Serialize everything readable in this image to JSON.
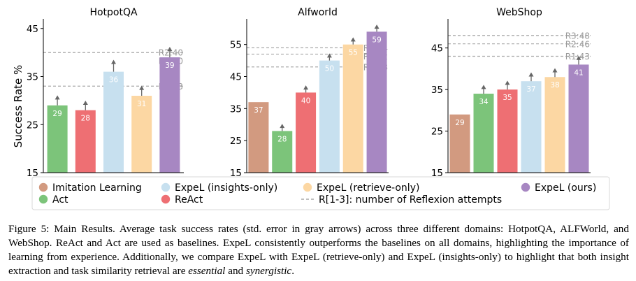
{
  "figure": {
    "ylabel": "Success Rate %",
    "colors": {
      "Imitation Learning": "#d29a80",
      "Act": "#7cc47a",
      "ReAct": "#ee6f73",
      "ExpeL (insights-only)": "#c7e0ef",
      "ExpeL (retrieve-only)": "#fcd7a3",
      "ExpeL (ours)": "#a787c2",
      "reflexion_line": "#aaaaaa",
      "error_arrow": "#666666"
    }
  },
  "chart_data": [
    {
      "type": "bar",
      "title": "HotpotQA",
      "ylabel": "Success Rate %",
      "ylim": [
        15,
        47
      ],
      "yticks": [
        15,
        25,
        35,
        45
      ],
      "categories": [
        "Act",
        "ReAct",
        "ExpeL (insights-only)",
        "ExpeL (retrieve-only)",
        "ExpeL (ours)"
      ],
      "values": [
        29,
        28,
        36,
        31,
        39
      ],
      "errors": [
        1.8,
        1.7,
        2.2,
        1.8,
        1.9
      ],
      "reflexion": [
        {
          "label": "R1:33",
          "value": 33
        },
        {
          "label": "R2:40",
          "value": 40
        },
        {
          "label": "R3:40",
          "value": 40
        }
      ]
    },
    {
      "type": "bar",
      "title": "Alfworld",
      "ylim": [
        15,
        63
      ],
      "yticks": [
        15,
        25,
        35,
        45,
        55
      ],
      "categories": [
        "Imitation Learning",
        "Act",
        "ReAct",
        "ExpeL (insights-only)",
        "ExpeL (retrieve-only)",
        "ExpeL (ours)"
      ],
      "values": [
        37,
        28,
        40,
        50,
        55,
        59
      ],
      "errors": [
        0,
        1.8,
        1.8,
        1.8,
        1.8,
        1.8
      ],
      "reflexion": [
        {
          "label": "R1:48",
          "value": 48
        },
        {
          "label": "R2:52",
          "value": 52
        },
        {
          "label": "R3:54",
          "value": 54
        }
      ]
    },
    {
      "type": "bar",
      "title": "WebShop",
      "ylim": [
        15,
        52
      ],
      "yticks": [
        15,
        25,
        35,
        45
      ],
      "categories": [
        "Imitation Learning",
        "Act",
        "ReAct",
        "ExpeL (insights-only)",
        "ExpeL (retrieve-only)",
        "ExpeL (ours)"
      ],
      "values": [
        29,
        34,
        35,
        37,
        38,
        41
      ],
      "errors": [
        0,
        1.8,
        1.8,
        1.8,
        1.8,
        1.8
      ],
      "reflexion": [
        {
          "label": "R1:43",
          "value": 43
        },
        {
          "label": "R2:46",
          "value": 46
        },
        {
          "label": "R3:48",
          "value": 48
        }
      ]
    }
  ],
  "legend": {
    "items": [
      "Imitation Learning",
      "ExpeL (insights-only)",
      "ExpeL (retrieve-only)",
      "ExpeL (ours)",
      "Act",
      "ReAct"
    ],
    "dashed_label": "R[1-3]: number of Reflexion attempts"
  },
  "caption": {
    "p1": "Figure 5: Main Results. Average task success rates (std. error in gray arrows) across three different domains: HotpotQA, ALFWorld, and WebShop. ReAct and Act are used as baselines. ExpeL consistently outperforms the baselines on all domains, highlighting the importance of learning from experience. Additionally, we compare ExpeL with ExpeL (retrieve-only) and ExpeL (insights-only) to highlight that both insight extraction and task similarity retrieval are ",
    "em1": "essential",
    "and": " and ",
    "em2": "synergistic",
    "end": "."
  }
}
